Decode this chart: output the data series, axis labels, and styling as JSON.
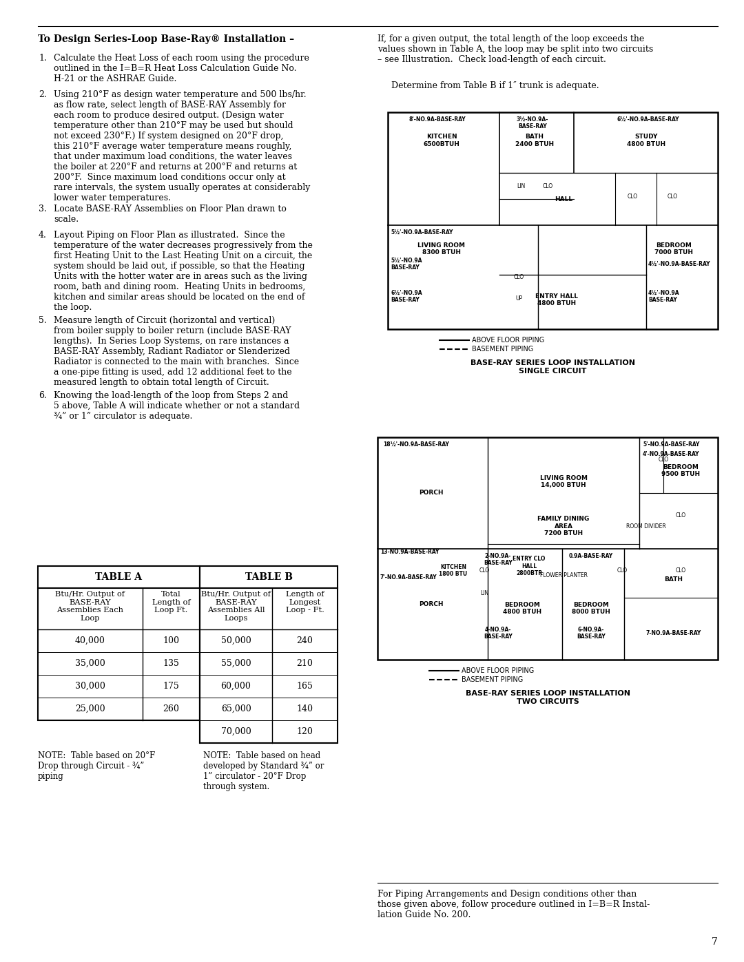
{
  "bg_color": "#ffffff",
  "title": "To Design Series-Loop Base-Ray® Installation –",
  "steps": [
    "Calculate the Heat Loss of each room using the procedure\noutlined in the I=B=R Heat Loss Calculation Guide No.\nH-21 or the ASHRAE Guide.",
    "Using 210°F as design water temperature and 500 lbs/hr.\nas flow rate, select length of BASE-RAY Assembly for\neach room to produce desired output. (Design water\ntemperature other than 210°F may be used but should\nnot exceed 230°F.) If system designed on 20°F drop,\nthis 210°F average water temperature means roughly,\nthat under maximum load conditions, the water leaves\nthe boiler at 220°F and returns at 200°F and returns at\n200°F.  Since maximum load conditions occur only at\nrare intervals, the system usually operates at considerably\nlower water temperatures.",
    "Locate BASE-RAY Assemblies on Floor Plan drawn to\nscale.",
    "Layout Piping on Floor Plan as illustrated.  Since the\ntemperature of the water decreases progressively from the\nfirst Heating Unit to the Last Heating Unit on a circuit, the\nsystem should be laid out, if possible, so that the Heating\nUnits with the hotter water are in areas such as the living\nroom, bath and dining room.  Heating Units in bedrooms,\nkitchen and similar areas should be located on the end of\nthe loop.",
    "Measure length of Circuit (horizontal and vertical)\nfrom boiler supply to boiler return (include BASE-RAY\nlengths).  In Series Loop Systems, on rare instances a\nBASE-RAY Assembly, Radiant Radiator or Slenderized\nRadiator is connected to the main with branches.  Since\na one-pipe fitting is used, add 12 additional feet to the\nmeasured length to obtain total length of Circuit.",
    "Knowing the load-length of the loop from Steps 2 and\n5 above, Table A will indicate whether or not a standard\n¾” or 1” circulator is adequate."
  ],
  "right_para1": "If, for a given output, the total length of the loop exceeds the\nvalues shown in Table A, the loop may be split into two circuits\n– see Illustration.  Check load-length of each circuit.",
  "right_para2": "     Determine from Table B if 1″ trunk is adequate.",
  "table_a_header": "TABLE A",
  "table_b_header": "TABLE B",
  "table_a_col1_header": "Btu/Hr. Output of\nBASE-RAY\nAssemblies Each\nLoop",
  "table_a_col2_header": "Total\nLength of\nLoop Ft.",
  "table_b_col1_header": "Btu/Hr. Output of\nBASE-RAY\nAssemblies All\nLoops",
  "table_b_col2_header": "Length of\nLongest\nLoop - Ft.",
  "table_a_data": [
    [
      "40,000",
      "100"
    ],
    [
      "35,000",
      "135"
    ],
    [
      "30,000",
      "175"
    ],
    [
      "25,000",
      "260"
    ]
  ],
  "table_b_data": [
    [
      "50,000",
      "240"
    ],
    [
      "55,000",
      "210"
    ],
    [
      "60,000",
      "165"
    ],
    [
      "65,000",
      "140"
    ],
    [
      "70,000",
      "120"
    ]
  ],
  "note_a": "NOTE:  Table based on 20°F\nDrop through Circuit - ¾”\npiping",
  "note_b": "NOTE:  Table based on head\ndeveloped by Standard ¾” or\n1” circulator - 20°F Drop\nthrough system.",
  "footer_text": "For Piping Arrangements and Design conditions other than\nthose given above, follow procedure outlined in I=B=R Instal-\nlation Guide No. 200.",
  "page_num": "7"
}
